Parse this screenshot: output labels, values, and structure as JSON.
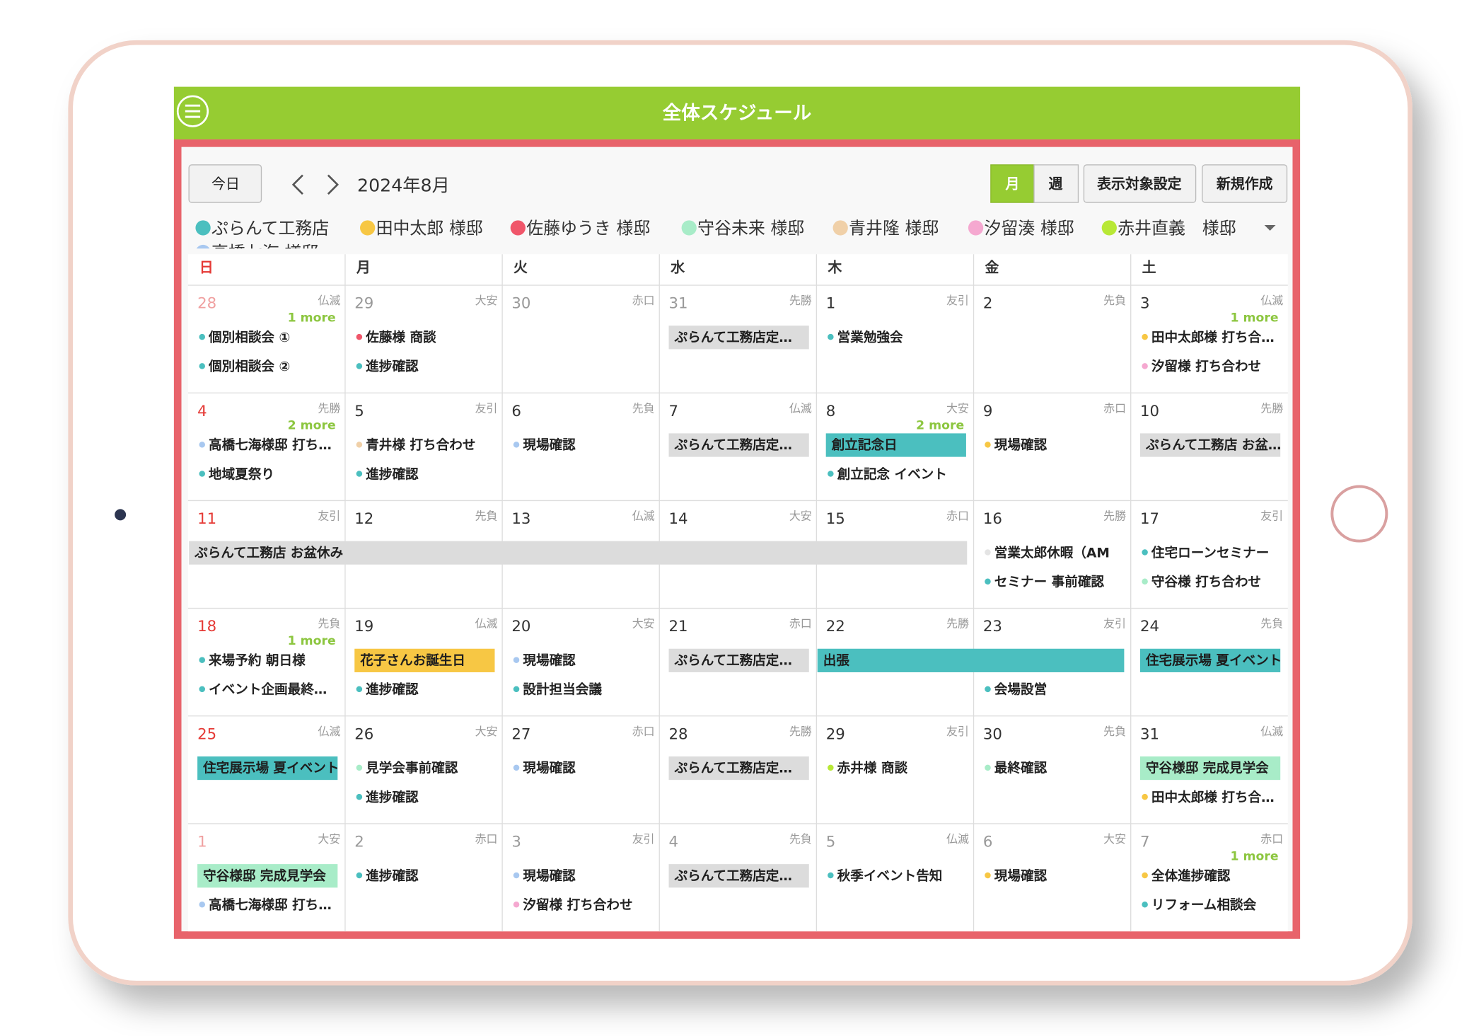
{
  "header": {
    "title": "全体スケジュール"
  },
  "toolbar": {
    "today": "今日",
    "month_label": "2024年8月",
    "view_month": "月",
    "view_week": "週",
    "display_settings": "表示対象設定",
    "create": "新規作成"
  },
  "legend": [
    {
      "name": "ぷらんて工務店",
      "color": "#4bbfbf"
    },
    {
      "name": "田中太郎 様邸",
      "color": "#f7c744"
    },
    {
      "name": "佐藤ゆうき 様邸",
      "color": "#f0566a"
    },
    {
      "name": "守谷未来 様邸",
      "color": "#a8ecc8"
    },
    {
      "name": "青井隆 様邸",
      "color": "#f0d0a8"
    },
    {
      "name": "汐留湊 様邸",
      "color": "#f5a8d0"
    },
    {
      "name": "赤井直義　様邸",
      "color": "#b8e836"
    },
    {
      "name": "高橋七海 様邸",
      "color": "#a8c8f0"
    }
  ],
  "weekdays": [
    "日",
    "月",
    "火",
    "水",
    "木",
    "金",
    "土"
  ],
  "weeks": [
    [
      {
        "date": "28",
        "rokuyo": "仏滅",
        "more": "1 more",
        "other_month": true,
        "events": [
          {
            "title": "個別相談会 ①",
            "color": "#4bbfbf",
            "kind": "dot"
          },
          {
            "title": "個別相談会 ②",
            "color": "#4bbfbf",
            "kind": "dot"
          }
        ]
      },
      {
        "date": "29",
        "rokuyo": "大安",
        "other_month": true,
        "events": [
          {
            "title": "佐藤様 商談",
            "color": "#f0566a",
            "kind": "dot"
          },
          {
            "title": "進捗確認",
            "color": "#4bbfbf",
            "kind": "dot"
          }
        ]
      },
      {
        "date": "30",
        "rokuyo": "赤口",
        "other_month": true,
        "events": []
      },
      {
        "date": "31",
        "rokuyo": "先勝",
        "other_month": true,
        "events": [
          {
            "title": "ぷらんて工務店定…",
            "color": "#dcdcdc",
            "kind": "bar"
          }
        ]
      },
      {
        "date": "1",
        "rokuyo": "友引",
        "events": [
          {
            "title": "営業勉強会",
            "color": "#4bbfbf",
            "kind": "dot"
          }
        ]
      },
      {
        "date": "2",
        "rokuyo": "先負",
        "events": []
      },
      {
        "date": "3",
        "rokuyo": "仏滅",
        "more": "1 more",
        "events": [
          {
            "title": "田中太郎様 打ち合…",
            "color": "#f7c744",
            "kind": "dot"
          },
          {
            "title": "汐留様 打ち合わせ",
            "color": "#f5a8d0",
            "kind": "dot"
          }
        ]
      }
    ],
    [
      {
        "date": "4",
        "rokuyo": "先勝",
        "more": "2 more",
        "events": [
          {
            "title": "高橋七海様邸 打ち…",
            "color": "#a8c8f0",
            "kind": "dot"
          },
          {
            "title": "地域夏祭り",
            "color": "#4bbfbf",
            "kind": "dot"
          }
        ]
      },
      {
        "date": "5",
        "rokuyo": "友引",
        "events": [
          {
            "title": "青井様 打ち合わせ",
            "color": "#f0d0a8",
            "kind": "dot"
          },
          {
            "title": "進捗確認",
            "color": "#4bbfbf",
            "kind": "dot"
          }
        ]
      },
      {
        "date": "6",
        "rokuyo": "先負",
        "events": [
          {
            "title": "現場確認",
            "color": "#a8c8f0",
            "kind": "dot"
          }
        ]
      },
      {
        "date": "7",
        "rokuyo": "仏滅",
        "events": [
          {
            "title": "ぷらんて工務店定…",
            "color": "#dcdcdc",
            "kind": "bar"
          }
        ]
      },
      {
        "date": "8",
        "rokuyo": "大安",
        "more": "2 more",
        "events": [
          {
            "title": "創立記念日",
            "color": "#4bbfbf",
            "kind": "bar"
          },
          {
            "title": "創立記念 イベント",
            "color": "#4bbfbf",
            "kind": "dot"
          }
        ]
      },
      {
        "date": "9",
        "rokuyo": "赤口",
        "events": [
          {
            "title": "現場確認",
            "color": "#f7c744",
            "kind": "dot"
          }
        ]
      },
      {
        "date": "10",
        "rokuyo": "先勝",
        "events": [
          {
            "title": "ぷらんて工務店 お盆…",
            "color": "#dcdcdc",
            "kind": "bar"
          }
        ]
      }
    ],
    [
      {
        "date": "11",
        "rokuyo": "友引",
        "events": [
          {
            "title": "ぷらんて工務店 お盆休み",
            "color": "#dcdcdc",
            "kind": "bar",
            "span": 5
          }
        ]
      },
      {
        "date": "12",
        "rokuyo": "先負",
        "events": []
      },
      {
        "date": "13",
        "rokuyo": "仏滅",
        "events": []
      },
      {
        "date": "14",
        "rokuyo": "大安",
        "events": []
      },
      {
        "date": "15",
        "rokuyo": "赤口",
        "events": []
      },
      {
        "date": "16",
        "rokuyo": "先勝",
        "events": [
          {
            "title": "営業太郎休暇（AM",
            "color": "#e4e4e4",
            "kind": "dot"
          },
          {
            "title": "セミナー 事前確認",
            "color": "#4bbfbf",
            "kind": "dot"
          }
        ]
      },
      {
        "date": "17",
        "rokuyo": "友引",
        "events": [
          {
            "title": "住宅ローンセミナー",
            "color": "#4bbfbf",
            "kind": "dot"
          },
          {
            "title": "守谷様 打ち合わせ",
            "color": "#a8ecc8",
            "kind": "dot"
          }
        ]
      }
    ],
    [
      {
        "date": "18",
        "rokuyo": "先負",
        "more": "1 more",
        "events": [
          {
            "title": "来場予約 朝日様",
            "color": "#4bbfbf",
            "kind": "dot"
          },
          {
            "title": "イベント企画最終…",
            "color": "#4bbfbf",
            "kind": "dot"
          }
        ]
      },
      {
        "date": "19",
        "rokuyo": "仏滅",
        "events": [
          {
            "title": "花子さんお誕生日",
            "color": "#f7c744",
            "kind": "bar"
          },
          {
            "title": "進捗確認",
            "color": "#4bbfbf",
            "kind": "dot"
          }
        ]
      },
      {
        "date": "20",
        "rokuyo": "大安",
        "events": [
          {
            "title": "現場確認",
            "color": "#a8c8f0",
            "kind": "dot"
          },
          {
            "title": "設計担当会議",
            "color": "#4bbfbf",
            "kind": "dot"
          }
        ]
      },
      {
        "date": "21",
        "rokuyo": "赤口",
        "events": [
          {
            "title": "ぷらんて工務店定…",
            "color": "#dcdcdc",
            "kind": "bar"
          }
        ]
      },
      {
        "date": "22",
        "rokuyo": "先勝",
        "events": [
          {
            "title": "出張",
            "color": "#4bbfbf",
            "kind": "bar",
            "span": 2
          }
        ]
      },
      {
        "date": "23",
        "rokuyo": "友引",
        "events": [
          null,
          {
            "title": "会場設営",
            "color": "#4bbfbf",
            "kind": "dot"
          }
        ]
      },
      {
        "date": "24",
        "rokuyo": "先負",
        "events": [
          {
            "title": "住宅展示場 夏イベント",
            "color": "#4bbfbf",
            "kind": "bar"
          }
        ]
      }
    ],
    [
      {
        "date": "25",
        "rokuyo": "仏滅",
        "events": [
          {
            "title": "住宅展示場 夏イベント",
            "color": "#4bbfbf",
            "kind": "bar"
          }
        ]
      },
      {
        "date": "26",
        "rokuyo": "大安",
        "events": [
          {
            "title": "見学会事前確認",
            "color": "#a8ecc8",
            "kind": "dot"
          },
          {
            "title": "進捗確認",
            "color": "#4bbfbf",
            "kind": "dot"
          }
        ]
      },
      {
        "date": "27",
        "rokuyo": "赤口",
        "events": [
          {
            "title": "現場確認",
            "color": "#a8c8f0",
            "kind": "dot"
          }
        ]
      },
      {
        "date": "28",
        "rokuyo": "先勝",
        "events": [
          {
            "title": "ぷらんて工務店定…",
            "color": "#dcdcdc",
            "kind": "bar"
          }
        ]
      },
      {
        "date": "29",
        "rokuyo": "友引",
        "events": [
          {
            "title": "赤井様 商談",
            "color": "#b8e836",
            "kind": "dot"
          }
        ]
      },
      {
        "date": "30",
        "rokuyo": "先負",
        "events": [
          {
            "title": "最終確認",
            "color": "#a8ecc8",
            "kind": "dot"
          }
        ]
      },
      {
        "date": "31",
        "rokuyo": "仏滅",
        "events": [
          {
            "title": "守谷様邸 完成見学会",
            "color": "#a8ecc8",
            "kind": "bar"
          },
          {
            "title": "田中太郎様 打ち合…",
            "color": "#f7c744",
            "kind": "dot"
          }
        ]
      }
    ],
    [
      {
        "date": "1",
        "rokuyo": "大安",
        "other_month": true,
        "events": [
          {
            "title": "守谷様邸 完成見学会",
            "color": "#a8ecc8",
            "kind": "bar"
          },
          {
            "title": "高橋七海様邸 打ち…",
            "color": "#a8c8f0",
            "kind": "dot"
          }
        ]
      },
      {
        "date": "2",
        "rokuyo": "赤口",
        "other_month": true,
        "events": [
          {
            "title": "進捗確認",
            "color": "#4bbfbf",
            "kind": "dot"
          }
        ]
      },
      {
        "date": "3",
        "rokuyo": "友引",
        "other_month": true,
        "events": [
          {
            "title": "現場確認",
            "color": "#a8c8f0",
            "kind": "dot"
          },
          {
            "title": "汐留様 打ち合わせ",
            "color": "#f5a8d0",
            "kind": "dot"
          }
        ]
      },
      {
        "date": "4",
        "rokuyo": "先負",
        "other_month": true,
        "events": [
          {
            "title": "ぷらんて工務店定…",
            "color": "#dcdcdc",
            "kind": "bar"
          }
        ]
      },
      {
        "date": "5",
        "rokuyo": "仏滅",
        "other_month": true,
        "events": [
          {
            "title": "秋季イベント告知",
            "color": "#4bbfbf",
            "kind": "dot"
          }
        ]
      },
      {
        "date": "6",
        "rokuyo": "大安",
        "other_month": true,
        "events": [
          {
            "title": "現場確認",
            "color": "#f7c744",
            "kind": "dot"
          }
        ]
      },
      {
        "date": "7",
        "rokuyo": "赤口",
        "more": "1 more",
        "other_month": true,
        "events": [
          {
            "title": "全体進捗確認",
            "color": "#f7c744",
            "kind": "dot"
          },
          {
            "title": "リフォーム相談会",
            "color": "#4bbfbf",
            "kind": "dot"
          }
        ]
      }
    ]
  ]
}
